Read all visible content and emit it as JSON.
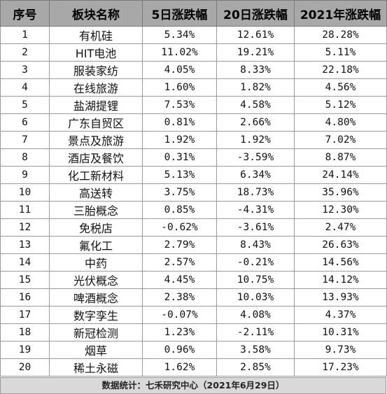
{
  "table": {
    "headers": [
      "序号",
      "板块名称",
      "5日涨跌幅",
      "20日涨跌幅",
      "2021年涨跌幅"
    ],
    "rows": [
      [
        "1",
        "有机硅",
        "5.34%",
        "12.61%",
        "28.28%"
      ],
      [
        "2",
        "HIT电池",
        "11.02%",
        "19.21%",
        "5.11%"
      ],
      [
        "3",
        "服装家纺",
        "4.05%",
        "8.33%",
        "22.18%"
      ],
      [
        "4",
        "在线旅游",
        "1.60%",
        "1.82%",
        "4.56%"
      ],
      [
        "5",
        "盐湖提锂",
        "7.53%",
        "4.58%",
        "5.12%"
      ],
      [
        "6",
        "广东自贸区",
        "0.81%",
        "2.66%",
        "4.80%"
      ],
      [
        "7",
        "景点及旅游",
        "1.92%",
        "1.92%",
        "7.02%"
      ],
      [
        "8",
        "酒店及餐饮",
        "0.31%",
        "-3.59%",
        "8.87%"
      ],
      [
        "9",
        "化工新材料",
        "5.13%",
        "6.34%",
        "24.14%"
      ],
      [
        "10",
        "高送转",
        "3.75%",
        "18.73%",
        "35.96%"
      ],
      [
        "11",
        "三胎概念",
        "0.85%",
        "-4.31%",
        "12.30%"
      ],
      [
        "12",
        "免税店",
        "-0.62%",
        "-3.61%",
        "2.47%"
      ],
      [
        "13",
        "氟化工",
        "2.79%",
        "8.43%",
        "26.63%"
      ],
      [
        "14",
        "中药",
        "2.57%",
        "-0.21%",
        "14.56%"
      ],
      [
        "15",
        "光伏概念",
        "4.45%",
        "10.75%",
        "14.12%"
      ],
      [
        "16",
        "啤酒概念",
        "2.38%",
        "10.03%",
        "13.93%"
      ],
      [
        "17",
        "数字孪生",
        "-0.07%",
        "4.08%",
        "4.37%"
      ],
      [
        "18",
        "新冠检测",
        "1.23%",
        "-2.11%",
        "10.31%"
      ],
      [
        "19",
        "烟草",
        "0.96%",
        "3.58%",
        "9.73%"
      ],
      [
        "20",
        "稀土永磁",
        "1.62%",
        "2.85%",
        "17.23%"
      ]
    ]
  },
  "footer": {
    "source": "数据统计：七禾研究中心（2021年6月29日）"
  }
}
